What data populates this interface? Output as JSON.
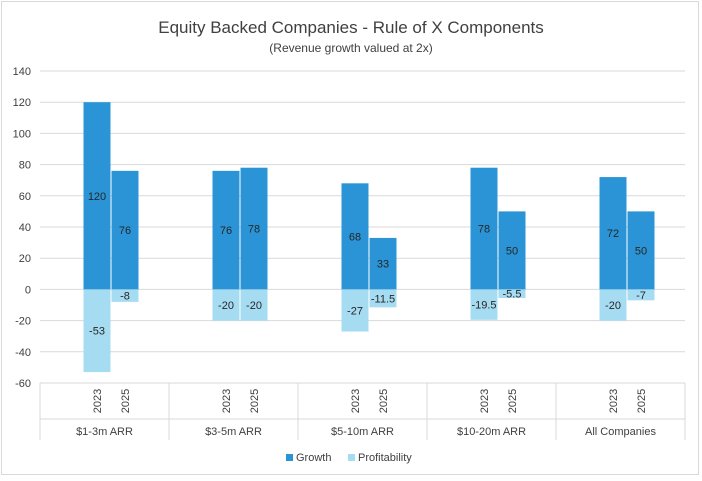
{
  "chart_data": {
    "type": "bar",
    "title": "Equity Backed Companies - Rule of X Components",
    "subtitle": "(Revenue growth valued at 2x)",
    "groups": [
      {
        "label": "$1-3m ARR",
        "years": [
          "2023",
          "2025"
        ]
      },
      {
        "label": "$3-5m ARR",
        "years": [
          "2023",
          "2025"
        ]
      },
      {
        "label": "$5-10m ARR",
        "years": [
          "2023",
          "2025"
        ]
      },
      {
        "label": "$10-20m ARR",
        "years": [
          "2023",
          "2025"
        ]
      },
      {
        "label": "All Companies",
        "years": [
          "2023",
          "2025"
        ]
      }
    ],
    "series": [
      {
        "name": "Growth",
        "color": "#2a94d6",
        "values": [
          [
            120,
            76
          ],
          [
            76,
            78
          ],
          [
            68,
            33
          ],
          [
            78,
            50
          ],
          [
            72,
            50
          ]
        ],
        "labels": [
          [
            "120",
            "76"
          ],
          [
            "76",
            "78"
          ],
          [
            "68",
            "33"
          ],
          [
            "78",
            "50"
          ],
          [
            "72",
            "50"
          ]
        ]
      },
      {
        "name": "Profitability",
        "color": "#a6dcf2",
        "values": [
          [
            -53,
            -8
          ],
          [
            -20,
            -20
          ],
          [
            -27,
            -11.5
          ],
          [
            -19.5,
            -5.5
          ],
          [
            -20,
            -7
          ]
        ],
        "labels": [
          [
            "-53",
            "-8"
          ],
          [
            "-20",
            "-20"
          ],
          [
            "-27",
            "-11.5"
          ],
          [
            "-19.5",
            "-5.5"
          ],
          [
            "-20",
            "-7"
          ]
        ]
      }
    ],
    "ylim": [
      -60,
      140
    ],
    "yticks": [
      140,
      120,
      100,
      80,
      60,
      40,
      20,
      0,
      -20,
      -40,
      -60
    ],
    "stacked": true,
    "grid": true,
    "legend_position": "bottom"
  }
}
